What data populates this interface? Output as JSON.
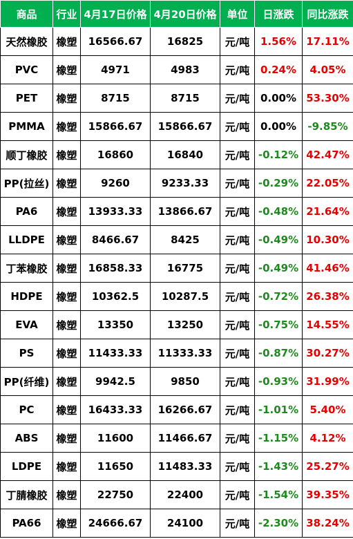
{
  "colors": {
    "header_bg": "#00b050",
    "header_text": "#ffffff",
    "positive": "#e60000",
    "negative": "#1e8a1e",
    "neutral": "#000000"
  },
  "table": {
    "headers": [
      "商品",
      "行业",
      "4月17日价格",
      "4月20日价格",
      "单位",
      "日涨跌",
      "同比涨跌"
    ],
    "rows": [
      {
        "product": "天然橡胶",
        "industry": "橡塑",
        "price_0417": "16566.67",
        "price_0420": "16825",
        "unit": "元/吨",
        "daily_change": "1.56%",
        "daily_sign": "pos",
        "yoy_change": "17.11%",
        "yoy_sign": "pos"
      },
      {
        "product": "PVC",
        "industry": "橡塑",
        "price_0417": "4971",
        "price_0420": "4983",
        "unit": "元/吨",
        "daily_change": "0.24%",
        "daily_sign": "pos",
        "yoy_change": "4.05%",
        "yoy_sign": "pos"
      },
      {
        "product": "PET",
        "industry": "橡塑",
        "price_0417": "8715",
        "price_0420": "8715",
        "unit": "元/吨",
        "daily_change": "0.00%",
        "daily_sign": "zero",
        "yoy_change": "53.30%",
        "yoy_sign": "pos"
      },
      {
        "product": "PMMA",
        "industry": "橡塑",
        "price_0417": "15866.67",
        "price_0420": "15866.67",
        "unit": "元/吨",
        "daily_change": "0.00%",
        "daily_sign": "zero",
        "yoy_change": "-9.85%",
        "yoy_sign": "neg"
      },
      {
        "product": "顺丁橡胶",
        "industry": "橡塑",
        "price_0417": "16860",
        "price_0420": "16840",
        "unit": "元/吨",
        "daily_change": "-0.12%",
        "daily_sign": "neg",
        "yoy_change": "42.47%",
        "yoy_sign": "pos"
      },
      {
        "product": "PP(拉丝)",
        "industry": "橡塑",
        "price_0417": "9260",
        "price_0420": "9233.33",
        "unit": "元/吨",
        "daily_change": "-0.29%",
        "daily_sign": "neg",
        "yoy_change": "22.05%",
        "yoy_sign": "pos"
      },
      {
        "product": "PA6",
        "industry": "橡塑",
        "price_0417": "13933.33",
        "price_0420": "13866.67",
        "unit": "元/吨",
        "daily_change": "-0.48%",
        "daily_sign": "neg",
        "yoy_change": "21.64%",
        "yoy_sign": "pos"
      },
      {
        "product": "LLDPE",
        "industry": "橡塑",
        "price_0417": "8466.67",
        "price_0420": "8425",
        "unit": "元/吨",
        "daily_change": "-0.49%",
        "daily_sign": "neg",
        "yoy_change": "10.30%",
        "yoy_sign": "pos"
      },
      {
        "product": "丁苯橡胶",
        "industry": "橡塑",
        "price_0417": "16858.33",
        "price_0420": "16775",
        "unit": "元/吨",
        "daily_change": "-0.49%",
        "daily_sign": "neg",
        "yoy_change": "41.46%",
        "yoy_sign": "pos"
      },
      {
        "product": "HDPE",
        "industry": "橡塑",
        "price_0417": "10362.5",
        "price_0420": "10287.5",
        "unit": "元/吨",
        "daily_change": "-0.72%",
        "daily_sign": "neg",
        "yoy_change": "26.38%",
        "yoy_sign": "pos"
      },
      {
        "product": "EVA",
        "industry": "橡塑",
        "price_0417": "13350",
        "price_0420": "13250",
        "unit": "元/吨",
        "daily_change": "-0.75%",
        "daily_sign": "neg",
        "yoy_change": "14.55%",
        "yoy_sign": "pos"
      },
      {
        "product": "PS",
        "industry": "橡塑",
        "price_0417": "11433.33",
        "price_0420": "11333.33",
        "unit": "元/吨",
        "daily_change": "-0.87%",
        "daily_sign": "neg",
        "yoy_change": "30.27%",
        "yoy_sign": "pos"
      },
      {
        "product": "PP(纤维)",
        "industry": "橡塑",
        "price_0417": "9942.5",
        "price_0420": "9850",
        "unit": "元/吨",
        "daily_change": "-0.93%",
        "daily_sign": "neg",
        "yoy_change": "31.99%",
        "yoy_sign": "pos"
      },
      {
        "product": "PC",
        "industry": "橡塑",
        "price_0417": "16433.33",
        "price_0420": "16266.67",
        "unit": "元/吨",
        "daily_change": "-1.01%",
        "daily_sign": "neg",
        "yoy_change": "5.40%",
        "yoy_sign": "pos"
      },
      {
        "product": "ABS",
        "industry": "橡塑",
        "price_0417": "11600",
        "price_0420": "11466.67",
        "unit": "元/吨",
        "daily_change": "-1.15%",
        "daily_sign": "neg",
        "yoy_change": "4.12%",
        "yoy_sign": "pos"
      },
      {
        "product": "LDPE",
        "industry": "橡塑",
        "price_0417": "11650",
        "price_0420": "11483.33",
        "unit": "元/吨",
        "daily_change": "-1.43%",
        "daily_sign": "neg",
        "yoy_change": "25.27%",
        "yoy_sign": "pos"
      },
      {
        "product": "丁腈橡胶",
        "industry": "橡塑",
        "price_0417": "22750",
        "price_0420": "22400",
        "unit": "元/吨",
        "daily_change": "-1.54%",
        "daily_sign": "neg",
        "yoy_change": "39.35%",
        "yoy_sign": "pos"
      },
      {
        "product": "PA66",
        "industry": "橡塑",
        "price_0417": "24666.67",
        "price_0420": "24100",
        "unit": "元/吨",
        "daily_change": "-2.30%",
        "daily_sign": "neg",
        "yoy_change": "38.24%",
        "yoy_sign": "pos"
      }
    ]
  }
}
